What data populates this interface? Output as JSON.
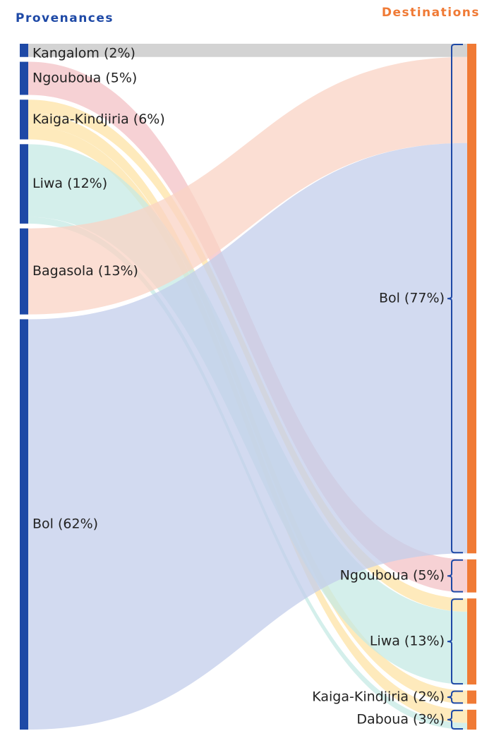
{
  "chart_data": {
    "type": "sankey",
    "title_left": "Provenances",
    "title_right": "Destinations",
    "sources": {
      "values": [
        2,
        5,
        6,
        12,
        13,
        62
      ],
      "value_labels": [
        "Kangalom (2%)",
        "Ngouboua (5%)",
        "Kaiga-Kindjiria (6%)",
        "Liwa (12%)",
        "Bagasola (13%)",
        "Bol (62%)"
      ],
      "link_colors": [
        "#c4c4c4",
        "#f3c2c6",
        "#fde3a6",
        "#c6eae4",
        "#f9d3c4",
        "#c3cdeb"
      ]
    },
    "targets": {
      "values": [
        77,
        5,
        13,
        2,
        3
      ],
      "value_labels": [
        "Bol (77%)",
        "Ngouboua (5%)",
        "Liwa (13%)",
        "Kaiga-Kindjiria (2%)",
        "Daboua (3%)"
      ]
    },
    "links": {
      "source": [
        0,
        1,
        2,
        2,
        2,
        3,
        3,
        4,
        5
      ],
      "target": [
        0,
        1,
        2,
        3,
        4,
        2,
        4,
        0,
        0
      ],
      "values": [
        2,
        5,
        2,
        2,
        2,
        11,
        1,
        13,
        62
      ]
    },
    "source_color": "#1e49a6",
    "target_color": "#f07a35",
    "bracket_color": "#1e49a6"
  }
}
